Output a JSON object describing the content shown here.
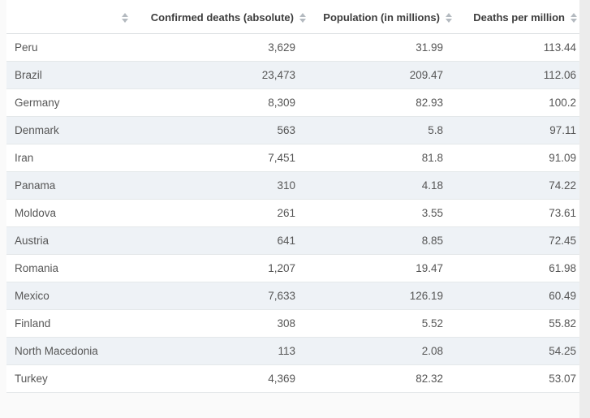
{
  "chart_data": {
    "type": "table",
    "title": "",
    "columns": [
      "",
      "Confirmed deaths (absolute)",
      "Population (in millions)",
      "Deaths per million"
    ],
    "rows": [
      [
        "Peru",
        "3,629",
        "31.99",
        "113.44"
      ],
      [
        "Brazil",
        "23,473",
        "209.47",
        "112.06"
      ],
      [
        "Germany",
        "8,309",
        "82.93",
        "100.2"
      ],
      [
        "Denmark",
        "563",
        "5.8",
        "97.11"
      ],
      [
        "Iran",
        "7,451",
        "81.8",
        "91.09"
      ],
      [
        "Panama",
        "310",
        "4.18",
        "74.22"
      ],
      [
        "Moldova",
        "261",
        "3.55",
        "73.61"
      ],
      [
        "Austria",
        "641",
        "8.85",
        "72.45"
      ],
      [
        "Romania",
        "1,207",
        "19.47",
        "61.98"
      ],
      [
        "Mexico",
        "7,633",
        "126.19",
        "60.49"
      ],
      [
        "Finland",
        "308",
        "5.52",
        "55.82"
      ],
      [
        "North Macedonia",
        "113",
        "2.08",
        "54.25"
      ],
      [
        "Turkey",
        "4,369",
        "82.32",
        "53.07"
      ]
    ],
    "layout": {
      "zebra_striping": true,
      "sortable_columns": true
    }
  },
  "icons": {
    "sort": "sort-arrows-icon"
  },
  "colors": {
    "header_text": "#3d3d3d",
    "cell_text": "#565656",
    "stripe_row_bg": "#eef2f6",
    "row_border": "#e4e8ea",
    "header_border": "#d9dde0",
    "sort_icon": "#b4bac0",
    "page_bg": "#fafafa",
    "scrollbar_track": "#ececec"
  }
}
